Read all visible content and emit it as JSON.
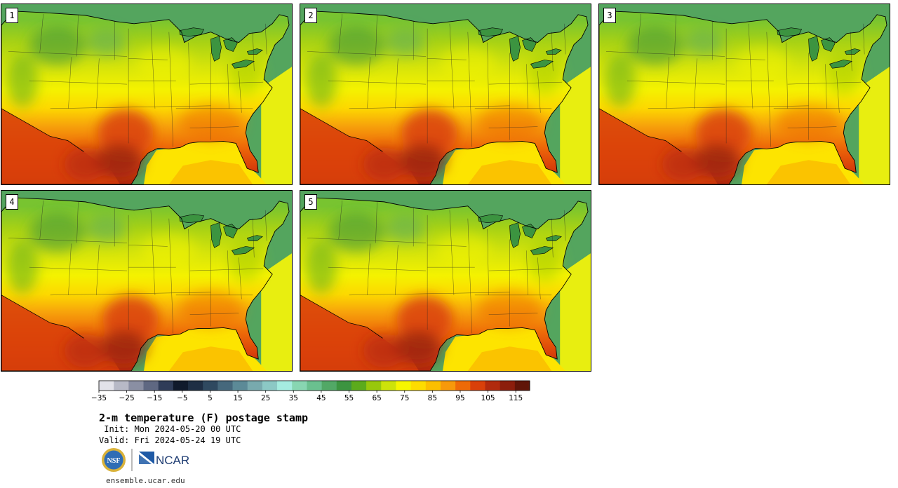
{
  "panels": [
    {
      "label": "1"
    },
    {
      "label": "2"
    },
    {
      "label": "3"
    },
    {
      "label": "4"
    },
    {
      "label": "5"
    }
  ],
  "colorbar": {
    "colors": [
      "#e2e2e9",
      "#b7b9c6",
      "#8a8fa3",
      "#5f6882",
      "#2f3c58",
      "#101a2c",
      "#1e2e44",
      "#2f4960",
      "#46687c",
      "#5c8a97",
      "#78aaae",
      "#8cc8c5",
      "#a5ece0",
      "#88d6b2",
      "#6ac08f",
      "#52a866",
      "#3c9440",
      "#5cab1c",
      "#98c80c",
      "#cde30a",
      "#f6f600",
      "#fddc00",
      "#fbbf00",
      "#f7990b",
      "#ee6a08",
      "#d9400a",
      "#b12a0e",
      "#8c1e0c",
      "#601508"
    ],
    "tick_labels": [
      "−35",
      "−25",
      "−15",
      "−5",
      "5",
      "15",
      "25",
      "35",
      "45",
      "55",
      "65",
      "75",
      "85",
      "95",
      "105",
      "115"
    ]
  },
  "title": "2-m temperature (F) postage stamp",
  "init": " Init: Mon 2024-05-20 00 UTC",
  "valid": "Valid: Fri 2024-05-24 19 UTC",
  "logos": {
    "nsf": "NSF",
    "ncar": "NCAR"
  },
  "website": "ensemble.ucar.edu"
}
